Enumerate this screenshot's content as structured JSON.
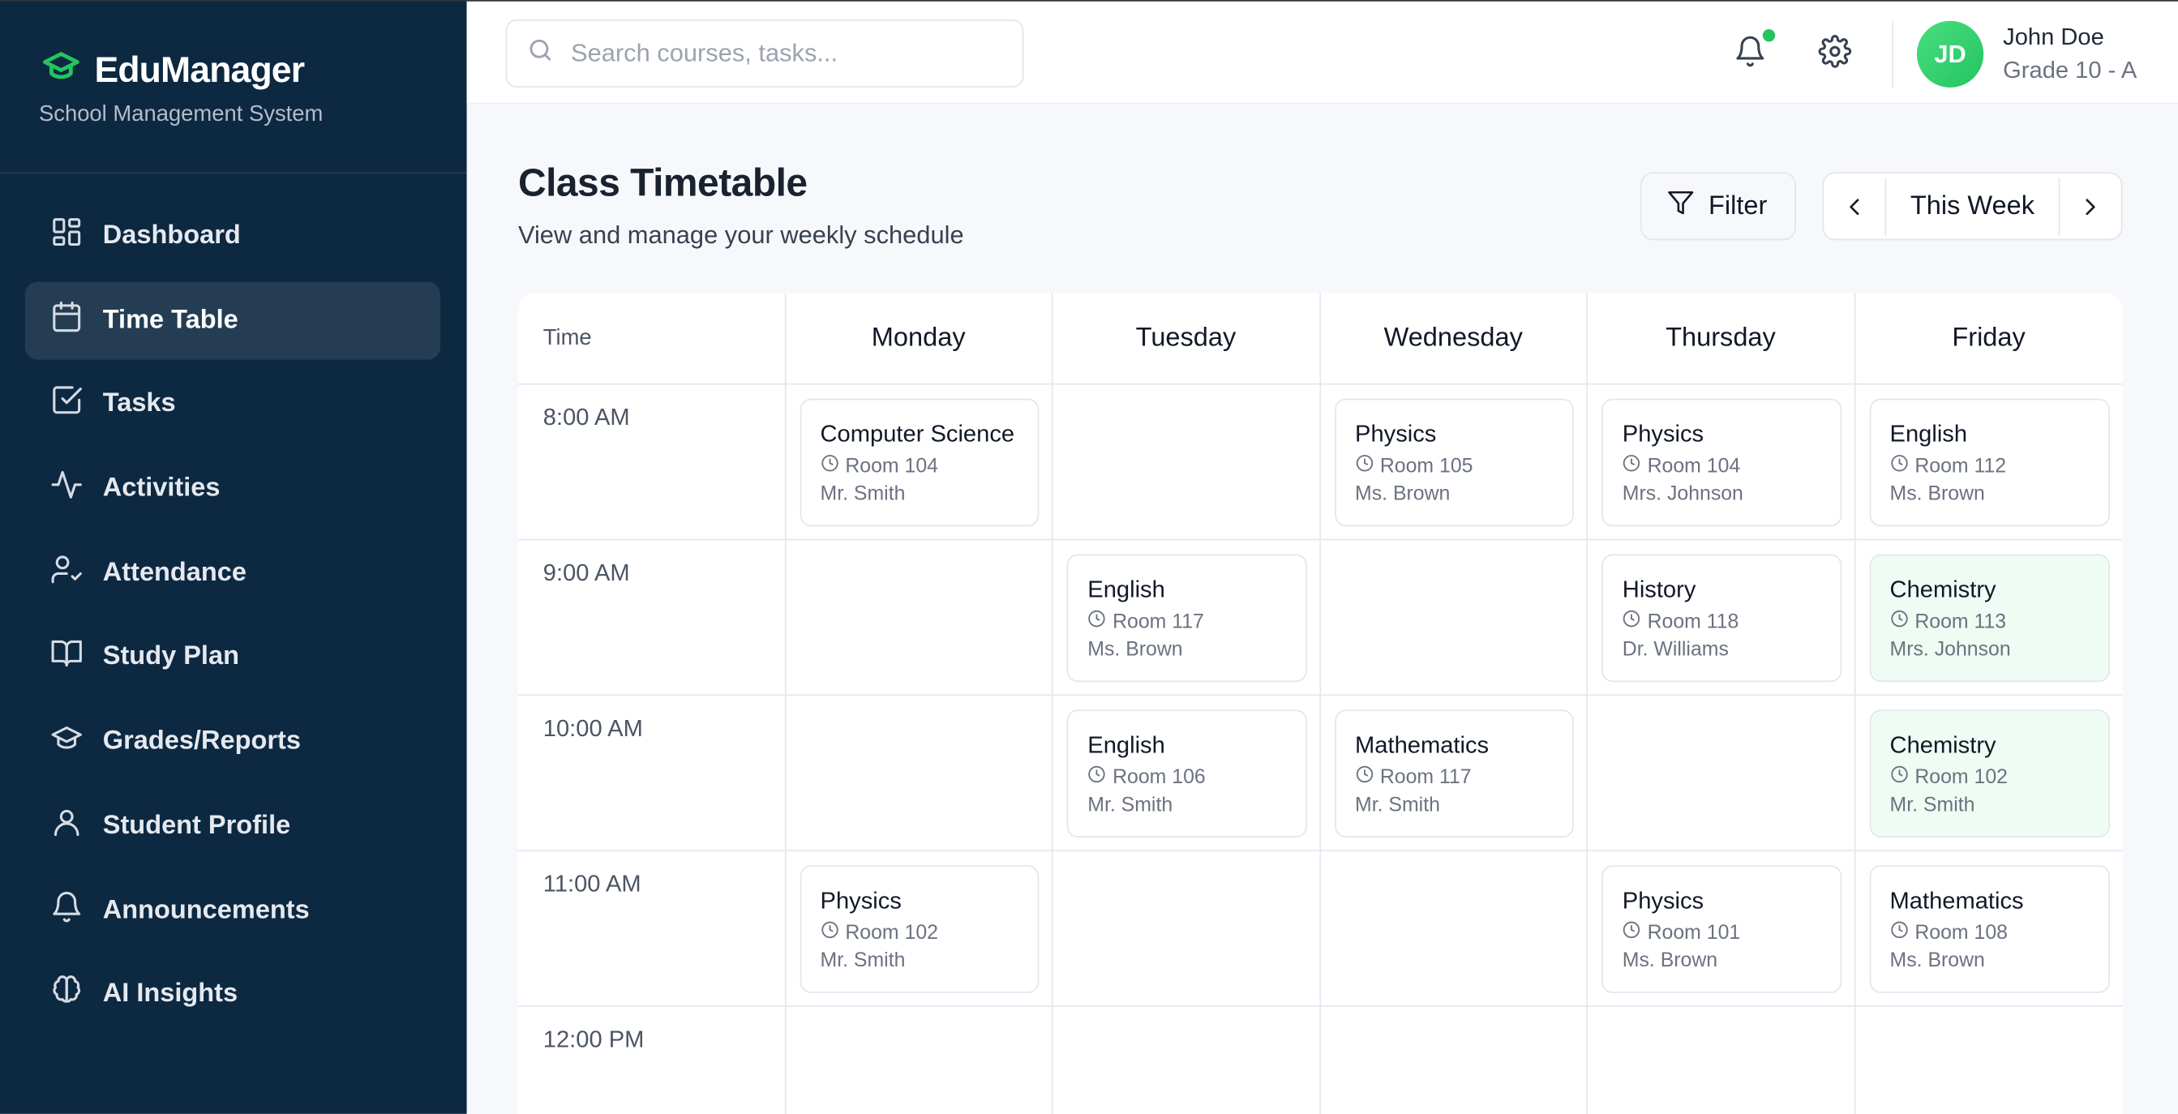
{
  "app": {
    "name": "EduManager",
    "subtitle": "School Management System",
    "accent": "#22c55e"
  },
  "sidebar": {
    "items": [
      {
        "label": "Dashboard",
        "icon": "dashboard-icon"
      },
      {
        "label": "Time Table",
        "icon": "calendar-icon",
        "active": true
      },
      {
        "label": "Tasks",
        "icon": "checkbox-icon"
      },
      {
        "label": "Activities",
        "icon": "activity-icon"
      },
      {
        "label": "Attendance",
        "icon": "user-check-icon"
      },
      {
        "label": "Study Plan",
        "icon": "book-icon"
      },
      {
        "label": "Grades/Reports",
        "icon": "graduation-cap-icon"
      },
      {
        "label": "Student Profile",
        "icon": "user-icon"
      },
      {
        "label": "Announcements",
        "icon": "bell-icon"
      },
      {
        "label": "AI Insights",
        "icon": "brain-icon"
      }
    ]
  },
  "header": {
    "search_placeholder": "Search courses, tasks...",
    "user": {
      "initials": "JD",
      "name": "John Doe",
      "grade": "Grade 10 - A"
    }
  },
  "page": {
    "title": "Class Timetable",
    "subtitle": "View and manage your weekly schedule",
    "filter_label": "Filter",
    "week_label": "This Week"
  },
  "timetable": {
    "time_header": "Time",
    "days": [
      "Monday",
      "Tuesday",
      "Wednesday",
      "Thursday",
      "Friday"
    ],
    "rows": [
      {
        "time": "8:00 AM",
        "slots": [
          {
            "subject": "Computer Science",
            "room": "Room 104",
            "teacher": "Mr. Smith"
          },
          null,
          {
            "subject": "Physics",
            "room": "Room 105",
            "teacher": "Ms. Brown"
          },
          {
            "subject": "Physics",
            "room": "Room 104",
            "teacher": "Mrs. Johnson"
          },
          {
            "subject": "English",
            "room": "Room 112",
            "teacher": "Ms. Brown"
          }
        ]
      },
      {
        "time": "9:00 AM",
        "slots": [
          null,
          {
            "subject": "English",
            "room": "Room 117",
            "teacher": "Ms. Brown"
          },
          null,
          {
            "subject": "History",
            "room": "Room 118",
            "teacher": "Dr. Williams"
          },
          {
            "subject": "Chemistry",
            "room": "Room 113",
            "teacher": "Mrs. Johnson",
            "highlight": true
          }
        ]
      },
      {
        "time": "10:00 AM",
        "slots": [
          null,
          {
            "subject": "English",
            "room": "Room 106",
            "teacher": "Mr. Smith"
          },
          {
            "subject": "Mathematics",
            "room": "Room 117",
            "teacher": "Mr. Smith"
          },
          null,
          {
            "subject": "Chemistry",
            "room": "Room 102",
            "teacher": "Mr. Smith",
            "highlight": true
          }
        ]
      },
      {
        "time": "11:00 AM",
        "slots": [
          {
            "subject": "Physics",
            "room": "Room 102",
            "teacher": "Mr. Smith"
          },
          null,
          null,
          {
            "subject": "Physics",
            "room": "Room 101",
            "teacher": "Ms. Brown"
          },
          {
            "subject": "Mathematics",
            "room": "Room 108",
            "teacher": "Ms. Brown"
          }
        ]
      },
      {
        "time": "12:00 PM",
        "slots": [
          null,
          null,
          null,
          null,
          null
        ]
      }
    ]
  }
}
